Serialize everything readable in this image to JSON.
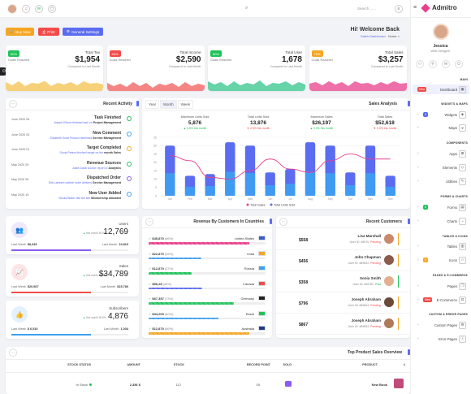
{
  "brand": {
    "name": "Admitro"
  },
  "topbar": {
    "search_placeholder": "Search ......"
  },
  "toolbar": {
    "buy_now": "Buy Now",
    "print": "Print",
    "general_settings": "General Settings"
  },
  "welcome": {
    "title": "Hi! Welcome Back",
    "breadcrumb_current": "Sales Dashboard",
    "breadcrumb_home": "Home"
  },
  "stats": [
    {
      "pct": "50%",
      "sub": "Goals Reached",
      "label": "Total Tax",
      "value": "$1,954",
      "compare": "Compared to Last Month",
      "color": "#20c35a",
      "wave": "#f3c24d"
    },
    {
      "pct": "60%",
      "sub": "Goals Reached",
      "label": "Total Income",
      "value": "$2,590",
      "compare": "Compared to Last Month",
      "color": "#f24b4b",
      "wave": "#f15c5c"
    },
    {
      "pct": "80%",
      "sub": "Goals Reached",
      "label": "Total User",
      "value": "1,678",
      "compare": "Compared to Last Month",
      "color": "#20c35a",
      "wave": "#33c48c"
    },
    {
      "pct": "75%",
      "sub": "Goals Reached",
      "label": "Total Sales",
      "value": "$3,257",
      "compare": "Compared to Last Month",
      "color": "#f5a623",
      "wave": "#e8408c"
    }
  ],
  "activity": {
    "title": "Recent Activity",
    "items": [
      {
        "date": "June 2020 04",
        "title": "Task Finished",
        "desc": "Joseph Ellison finished task on",
        "strong": "Project Management",
        "color": "#20c35a"
      },
      {
        "date": "June 2020 03",
        "title": "New Comment",
        "desc": "Elizabeth Scott Product wirehead",
        "strong": "Service Management",
        "color": "#3da0f2"
      },
      {
        "date": "June 2020 01",
        "title": "Target Completed",
        "desc": "Sonia Peters finished target on the",
        "strong": "month Sales",
        "color": "#f5a623"
      },
      {
        "date": "May 2020 29",
        "title": "Revenue Sources",
        "desc": "Justin Dauli source report of",
        "strong": "Analytics",
        "color": "#20c35a"
      },
      {
        "date": "May 2020 25",
        "title": "Dispatched Order",
        "desc": "Ella Lambert ontime order delivery",
        "strong": "Service Management",
        "color": "#8a5cf0"
      },
      {
        "date": "May 2020 19",
        "title": "New User Added",
        "desc": "Nicola Blake visit the site",
        "strong": "Membership allocated",
        "color": "#3da0f2"
      }
    ]
  },
  "sales": {
    "title": "Sales Analysis",
    "tabs": [
      "Year",
      "Month",
      "Week"
    ],
    "metrics": [
      {
        "label": "Maximum Units Sold",
        "value": "5,876",
        "change": "▲ 0.5% this month"
      },
      {
        "label": "Total Units Sold",
        "value": "13,876",
        "change": "▼ 0.5% this month"
      },
      {
        "label": "Maximum Sales",
        "value": "$26,197",
        "change": "▲ 0.5% this month"
      },
      {
        "label": "Total Sales",
        "value": "$52,618",
        "change": "▼ 0.5% this month"
      }
    ],
    "legend": [
      "Total Sales",
      "Total Units Sold"
    ]
  },
  "chart_data": {
    "type": "bar",
    "title": "Sales Analysis",
    "categories": [
      "Jan",
      "Feb",
      "Mar",
      "Apr",
      "May",
      "Jun",
      "Jul",
      "Aug",
      "Sep",
      "Oct",
      "Nov",
      "Dec"
    ],
    "ylim": [
      0,
      35
    ],
    "yticks": [
      "0",
      "5",
      "10",
      "15",
      "20",
      "25",
      "30",
      "35"
    ],
    "series": [
      {
        "name": "Total Sales",
        "type": "line",
        "values": [
          24,
          21,
          11,
          10,
          15,
          22,
          16,
          14,
          21,
          25,
          22,
          22
        ]
      },
      {
        "name": "Total Units Sold",
        "type": "bar",
        "values": [
          30,
          12,
          13,
          32,
          30,
          14,
          16,
          32,
          30,
          14,
          30,
          12
        ]
      }
    ]
  },
  "mini_stats": [
    {
      "label": "Users",
      "arrow": "▲",
      "this_month": "this month 50.5%",
      "value": "12,769",
      "last_week_label": "Last Week",
      "last_week": "$8,345",
      "last_month_label": "Last Month",
      "last_month": "10,819",
      "color": "#8a5cf0",
      "bg": "#ede8fc",
      "icon": "users-icon"
    },
    {
      "label": "Sales",
      "arrow": "▲",
      "this_month": "this month 50.5%",
      "value": "$34,789",
      "last_week_label": "Last Week",
      "last_week": "$20,567",
      "last_month_label": "Last Month",
      "last_month": "$15,780",
      "color": "#f24b4b",
      "bg": "#fde5e5",
      "icon": "chart-icon"
    },
    {
      "label": "Subscribers",
      "arrow": "▲",
      "this_month": "this month 50.5%",
      "value": "4,876",
      "last_week_label": "Last Week",
      "last_week": "$ 6,510",
      "last_month_label": "Last Month",
      "last_month": "1,034",
      "color": "#3da0f2",
      "bg": "#e2f1fd",
      "icon": "thumbs-up-icon"
    }
  ],
  "countries": {
    "title": "Revenue By Customers In Countries",
    "items": [
      {
        "value": "$45,870",
        "pct": "(86%)",
        "name": "United States",
        "fill": 0.86,
        "color": "#e8408c"
      },
      {
        "value": "$22,870",
        "pct": "(45%)",
        "name": "India",
        "fill": 0.45,
        "color": "#3da0f2"
      },
      {
        "value": "$12,870",
        "pct": "(37%)",
        "name": "Russia",
        "fill": 0.37,
        "color": "#20c35a"
      },
      {
        "value": "$56,28",
        "pct": "(46%)",
        "name": "Canada",
        "fill": 0.46,
        "color": "#5b6cf0"
      },
      {
        "value": "$67,357",
        "pct": "(73%)",
        "name": "Germany",
        "fill": 0.73,
        "color": "#20c35a"
      },
      {
        "value": "$34,209",
        "pct": "(60%)",
        "name": "Brazil",
        "fill": 0.6,
        "color": "#3da0f2"
      },
      {
        "value": "$12,870",
        "pct": "(86%)",
        "name": "Australia",
        "fill": 0.86,
        "color": "#f5a623"
      }
    ]
  },
  "customers": {
    "title": "Recent Customers",
    "items": [
      {
        "amount": "$558",
        "name": "Lisa Marshall",
        "id": "User ID: #8976",
        "status": "Pending",
        "color": "#f5a623"
      },
      {
        "amount": "$456",
        "name": "John Chapman",
        "id": "User ID: #89654",
        "status": "Pending",
        "color": "#f5a623"
      },
      {
        "amount": "$358",
        "name": "Sonia Smith",
        "id": "User ID: #65782",
        "status": "Paid",
        "color": "#20c35a"
      },
      {
        "amount": "$796",
        "name": "Joseph Abraham",
        "id": "User ID: #89654",
        "status": "Pending",
        "color": "#f5a623"
      },
      {
        "amount": "$867",
        "name": "Joseph Abraham",
        "id": "User ID: #89654",
        "status": "Pending",
        "color": "#f5a623"
      }
    ]
  },
  "product_table": {
    "title": "Top Product Sales Overview",
    "headers": [
      "#",
      "PRODUCT",
      "SOLD",
      "RECORD POINT",
      "STOCK",
      "AMOUNT",
      "STOCK STATUS"
    ],
    "row": {
      "num": "",
      "product": "New Book",
      "sold": "",
      "record_point": "05",
      "stock": "112",
      "amount": "2,356 $",
      "status": "In Stock"
    }
  },
  "profile": {
    "name": "Jessica",
    "role": "Web Designer"
  },
  "sidebar": {
    "main_head": "MAIN",
    "dashboard": "Dashboard",
    "dashboard_badge": "New",
    "widgets_head": "WIDGETS & MAPS",
    "widgets": "Widgets",
    "widgets_badge": "4",
    "maps": "Maps",
    "components_head": "COMPONENTS",
    "apps": "Apps",
    "elements": "Elements",
    "utilities": "Utilities",
    "forms_head": "FORMS & CHARTS",
    "forms": "Forms",
    "forms_badge": "6",
    "charts": "Charts",
    "tables_head": "TABLES & ICONS",
    "tables": "Tables",
    "icons": "Icons",
    "icons_badge": "6",
    "pages_head": "PAGES & E-COMMERCE",
    "pages": "Pages",
    "ecommerce": "E-Commerce",
    "ecommerce_badge": "New",
    "custom_head": "CUSTOM & ERROR PAGES",
    "custom_pages": "Custom Pages",
    "error_pages": "Error Pages"
  }
}
